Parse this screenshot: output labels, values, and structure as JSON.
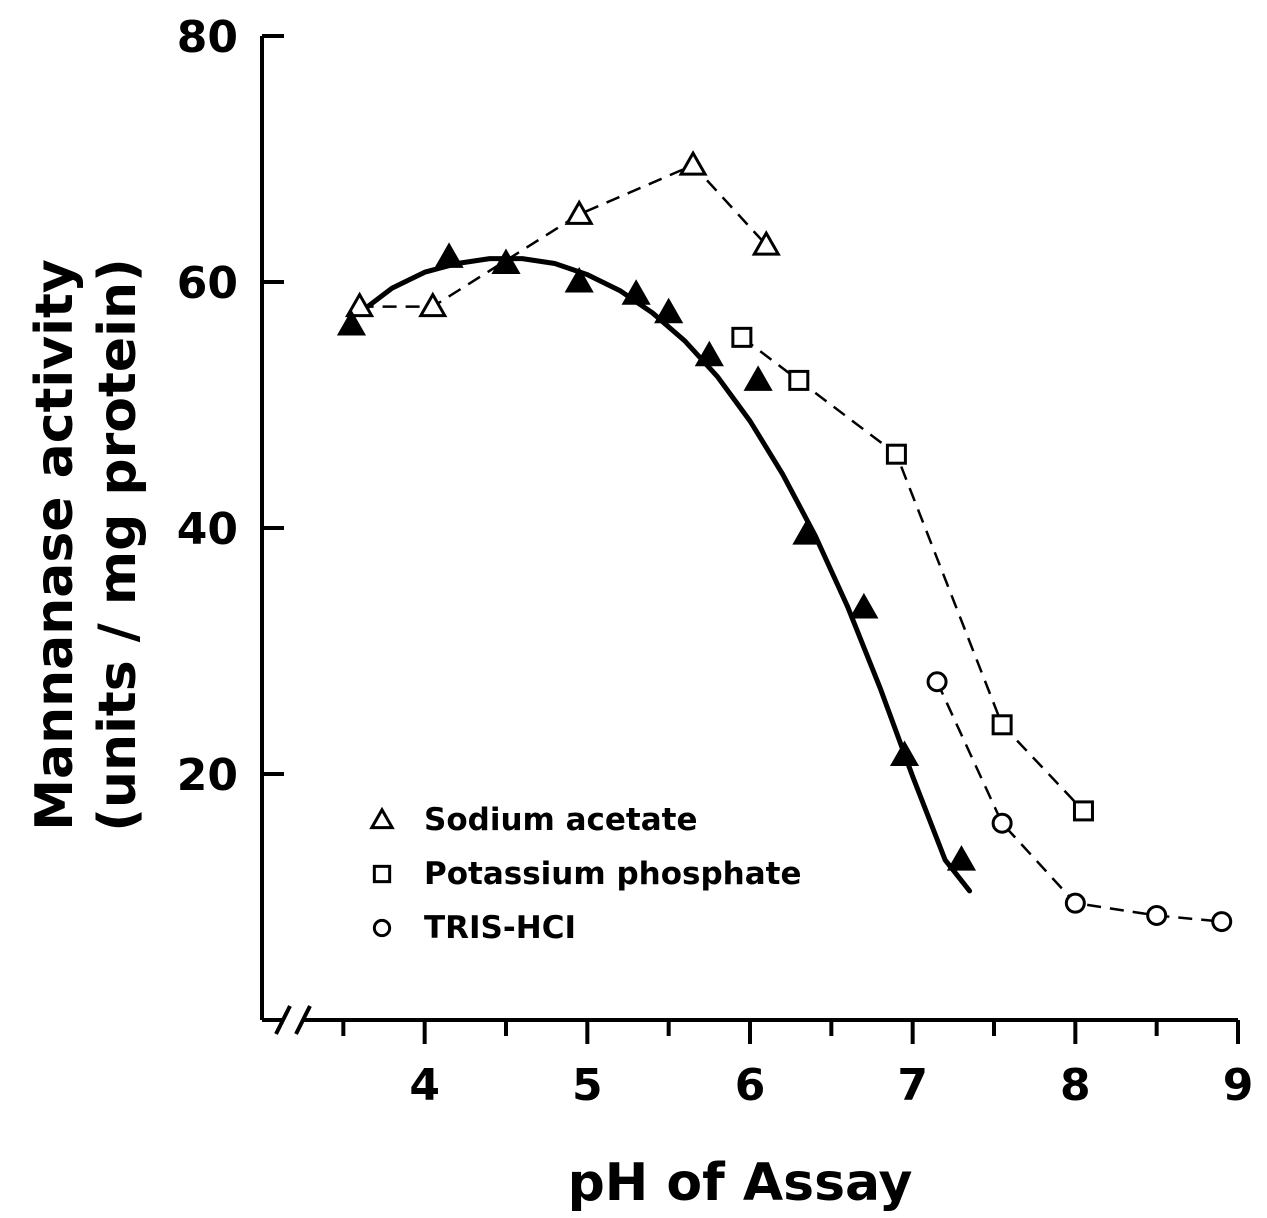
{
  "chart_data": {
    "type": "line",
    "xlabel": "pH of Assay",
    "ylabel_line1": "Mannanase activity",
    "ylabel_line2": "(units / mg protein)",
    "xlim": [
      3.0,
      9.0
    ],
    "ylim": [
      0,
      80
    ],
    "x_ticks": [
      4,
      5,
      6,
      7,
      8,
      9
    ],
    "x_minor_ticks": [
      3.5,
      4.5,
      5.5,
      6.5,
      7.5,
      8.5
    ],
    "y_ticks": [
      20,
      40,
      60,
      80
    ],
    "axis_break": true,
    "grid": false,
    "legend_position": "lower-left inside plot",
    "series": [
      {
        "name": "Sodium acetate",
        "marker": "triangle-open",
        "line": "dashed",
        "color": "#000000",
        "x": [
          3.6,
          4.05,
          4.95,
          5.65,
          6.1
        ],
        "y": [
          58,
          58,
          65.5,
          69.5,
          63
        ]
      },
      {
        "name": "Sodium acetate",
        "marker": "triangle-filled",
        "line": "none",
        "color": "#000000",
        "x": [
          3.55,
          4.15,
          4.5,
          4.95,
          5.3,
          5.5,
          5.75,
          6.05,
          6.35,
          6.7,
          6.95,
          7.3
        ],
        "y": [
          56.5,
          62,
          61.5,
          60,
          59,
          57.5,
          54,
          52,
          39.5,
          33.5,
          21.5,
          13
        ]
      },
      {
        "name": "Potassium phosphate",
        "marker": "square-open",
        "line": "dashed",
        "color": "#000000",
        "x": [
          5.95,
          6.3,
          6.9,
          7.55,
          8.05
        ],
        "y": [
          55.5,
          52,
          46,
          24,
          17
        ]
      },
      {
        "name": "TRIS-HCl",
        "marker": "circle-open",
        "line": "dashed",
        "color": "#000000",
        "x": [
          7.15,
          7.55,
          8.0,
          8.5,
          8.9
        ],
        "y": [
          27.5,
          16,
          9.5,
          8.5,
          8
        ]
      }
    ],
    "fitted_curve": {
      "line": "solid",
      "x": [
        3.6,
        3.8,
        4.0,
        4.2,
        4.4,
        4.6,
        4.8,
        5.0,
        5.2,
        5.4,
        5.6,
        5.8,
        6.0,
        6.2,
        6.4,
        6.6,
        6.8,
        7.0,
        7.2,
        7.35
      ],
      "y": [
        57.5,
        59.5,
        60.8,
        61.5,
        61.9,
        61.9,
        61.5,
        60.6,
        59.3,
        57.5,
        55.2,
        52.3,
        48.7,
        44.4,
        39.4,
        33.6,
        27,
        19.8,
        13,
        10.5
      ]
    },
    "legend": [
      {
        "label": "Sodium acetate",
        "marker": "triangle-open"
      },
      {
        "label": "Potassium phosphate",
        "marker": "square-open"
      },
      {
        "label": "TRIS-HCI",
        "marker": "circle-open"
      }
    ]
  }
}
